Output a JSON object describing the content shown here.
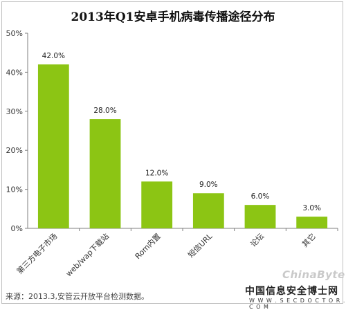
{
  "chart_data": {
    "type": "bar",
    "title": "2013年Q1安卓手机病毒传播途径分布",
    "categories": [
      "第三方电子市场",
      "web/wap下载站",
      "Rom内置",
      "短信URL",
      "论坛",
      "其它"
    ],
    "values": [
      42.0,
      28.0,
      12.0,
      9.0,
      6.0,
      3.0
    ],
    "value_labels": [
      "42.0%",
      "28.0%",
      "12.0%",
      "9.0%",
      "6.0%",
      "3.0%"
    ],
    "yticks": [
      "0%",
      "10%",
      "20%",
      "30%",
      "40%",
      "50%"
    ],
    "ylim": [
      0,
      50
    ],
    "xlabel": "",
    "ylabel": "",
    "grid": false,
    "bar_color": "#8cc514"
  },
  "source_note": "来源：2013.3,安管云开放平台检测数据。",
  "watermarks": {
    "chinabyte": "ChinaByte",
    "secdoctor_cn": "中国信息安全博士网",
    "secdoctor_url": "W W W . S E C D O C T O R . C O M"
  }
}
